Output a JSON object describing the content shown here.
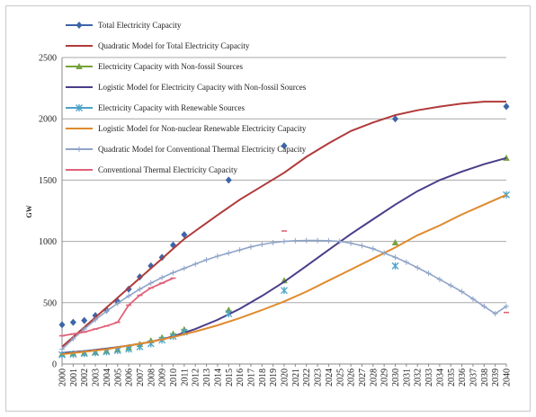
{
  "chart_data": {
    "type": "line",
    "ylabel": "GW",
    "ylim": [
      0,
      2500
    ],
    "yticks": [
      0,
      500,
      1000,
      1500,
      2000,
      2500
    ],
    "x_range": [
      2000,
      2040
    ],
    "grid": "horizontal",
    "legend_position": "top-left",
    "series": [
      {
        "name": "Total Electricity  Capacity",
        "kind": "points",
        "color": "#3d65a8",
        "marker": "diamond",
        "x": [
          2000,
          2001,
          2002,
          2003,
          2004,
          2005,
          2006,
          2007,
          2008,
          2009,
          2010,
          2011,
          2015,
          2020,
          2030,
          2040
        ],
        "y": [
          320,
          340,
          355,
          395,
          440,
          510,
          610,
          710,
          800,
          870,
          970,
          1055,
          1500,
          1780,
          2000,
          2100
        ]
      },
      {
        "name": "Quadratic Model for Total Electricity  Capacity",
        "kind": "line",
        "color": "#b03a3a",
        "x": [
          2000,
          2001,
          2002,
          2003,
          2004,
          2005,
          2006,
          2007,
          2008,
          2009,
          2010,
          2011,
          2012,
          2014,
          2016,
          2018,
          2020,
          2022,
          2024,
          2026,
          2028,
          2030,
          2032,
          2034,
          2036,
          2038,
          2040
        ],
        "y": [
          140,
          220,
          300,
          380,
          460,
          540,
          620,
          700,
          780,
          860,
          940,
          1020,
          1085,
          1215,
          1340,
          1450,
          1560,
          1690,
          1800,
          1900,
          1970,
          2030,
          2070,
          2100,
          2125,
          2140,
          2140
        ]
      },
      {
        "name": "Electricity Capacity with Non-fossil Sources",
        "kind": "points",
        "color": "#77a33c",
        "marker": "triangle",
        "x": [
          2000,
          2001,
          2002,
          2003,
          2004,
          2005,
          2006,
          2007,
          2008,
          2009,
          2010,
          2011,
          2015,
          2020,
          2030,
          2040
        ],
        "y": [
          80,
          85,
          90,
          95,
          105,
          118,
          135,
          160,
          190,
          215,
          245,
          280,
          440,
          680,
          990,
          1680
        ]
      },
      {
        "name": "Logistic Model for Electricity  Capacity with Non-fossil Sources",
        "kind": "line",
        "color": "#4a3d8a",
        "x": [
          2000,
          2002,
          2004,
          2006,
          2008,
          2010,
          2012,
          2014,
          2016,
          2018,
          2020,
          2022,
          2024,
          2026,
          2028,
          2030,
          2032,
          2034,
          2036,
          2038,
          2040
        ],
        "y": [
          90,
          105,
          125,
          150,
          180,
          225,
          285,
          360,
          450,
          555,
          670,
          800,
          930,
          1060,
          1180,
          1300,
          1410,
          1500,
          1570,
          1630,
          1680
        ]
      },
      {
        "name": "Electricity Capacity with Renewable Sources",
        "kind": "points",
        "color": "#4aa3c8",
        "marker": "asterisk",
        "x": [
          2000,
          2001,
          2002,
          2003,
          2004,
          2005,
          2006,
          2007,
          2008,
          2009,
          2010,
          2011,
          2015,
          2020,
          2030,
          2040
        ],
        "y": [
          75,
          80,
          85,
          92,
          100,
          110,
          122,
          140,
          165,
          195,
          225,
          260,
          410,
          600,
          800,
          1380
        ]
      },
      {
        "name": "Logistic Model for Non-nuclear Renewable Electricity  Capacity",
        "kind": "line",
        "color": "#e08a2e",
        "x": [
          2000,
          2002,
          2004,
          2006,
          2008,
          2010,
          2012,
          2014,
          2016,
          2018,
          2020,
          2022,
          2024,
          2026,
          2028,
          2030,
          2032,
          2034,
          2036,
          2038,
          2040
        ],
        "y": [
          80,
          100,
          120,
          150,
          180,
          220,
          265,
          315,
          375,
          440,
          510,
          590,
          680,
          770,
          860,
          950,
          1050,
          1130,
          1220,
          1300,
          1380
        ]
      },
      {
        "name": "Quadratic Model for Conventional Thermal Electricity  Capacity",
        "kind": "line-cross",
        "color": "#8fa4c8",
        "x": [
          2000,
          2001,
          2002,
          2003,
          2004,
          2005,
          2006,
          2007,
          2008,
          2009,
          2010,
          2011,
          2012,
          2013,
          2014,
          2015,
          2016,
          2017,
          2018,
          2019,
          2020,
          2021,
          2022,
          2023,
          2024,
          2025,
          2026,
          2027,
          2028,
          2029,
          2030,
          2031,
          2032,
          2033,
          2034,
          2035,
          2036,
          2037,
          2038,
          2039,
          2040
        ],
        "y": [
          120,
          205,
          285,
          360,
          430,
          495,
          555,
          610,
          660,
          705,
          745,
          780,
          815,
          850,
          880,
          905,
          930,
          955,
          975,
          990,
          1000,
          1005,
          1007,
          1007,
          1005,
          1000,
          985,
          965,
          940,
          905,
          870,
          830,
          785,
          740,
          690,
          640,
          590,
          530,
          470,
          410,
          470
        ]
      },
      {
        "name": "Conventional Thermal Electricity  Capacity",
        "kind": "line-dash-marks",
        "color": "#e0627a",
        "x": [
          2000,
          2001,
          2002,
          2003,
          2004,
          2005,
          2006,
          2007,
          2008,
          2009,
          2010,
          2020,
          2040
        ],
        "y": [
          230,
          245,
          260,
          285,
          310,
          340,
          480,
          560,
          620,
          660,
          700,
          1085,
          420
        ]
      }
    ],
    "x_tick_labels": [
      "2000",
      "2001",
      "2002",
      "2003",
      "2004",
      "2005",
      "2006",
      "2007",
      "2008",
      "2009",
      "2010",
      "2011",
      "2012",
      "2013",
      "2014",
      "2015",
      "2016",
      "2017",
      "2018",
      "2019",
      "2020",
      "2021",
      "2022",
      "2023",
      "2024",
      "2025",
      "2026",
      "2027",
      "2028",
      "2029",
      "2030",
      "2031",
      "2032",
      "2033",
      "2034",
      "2035",
      "2036",
      "2037",
      "2038",
      "2039",
      "2040"
    ]
  }
}
